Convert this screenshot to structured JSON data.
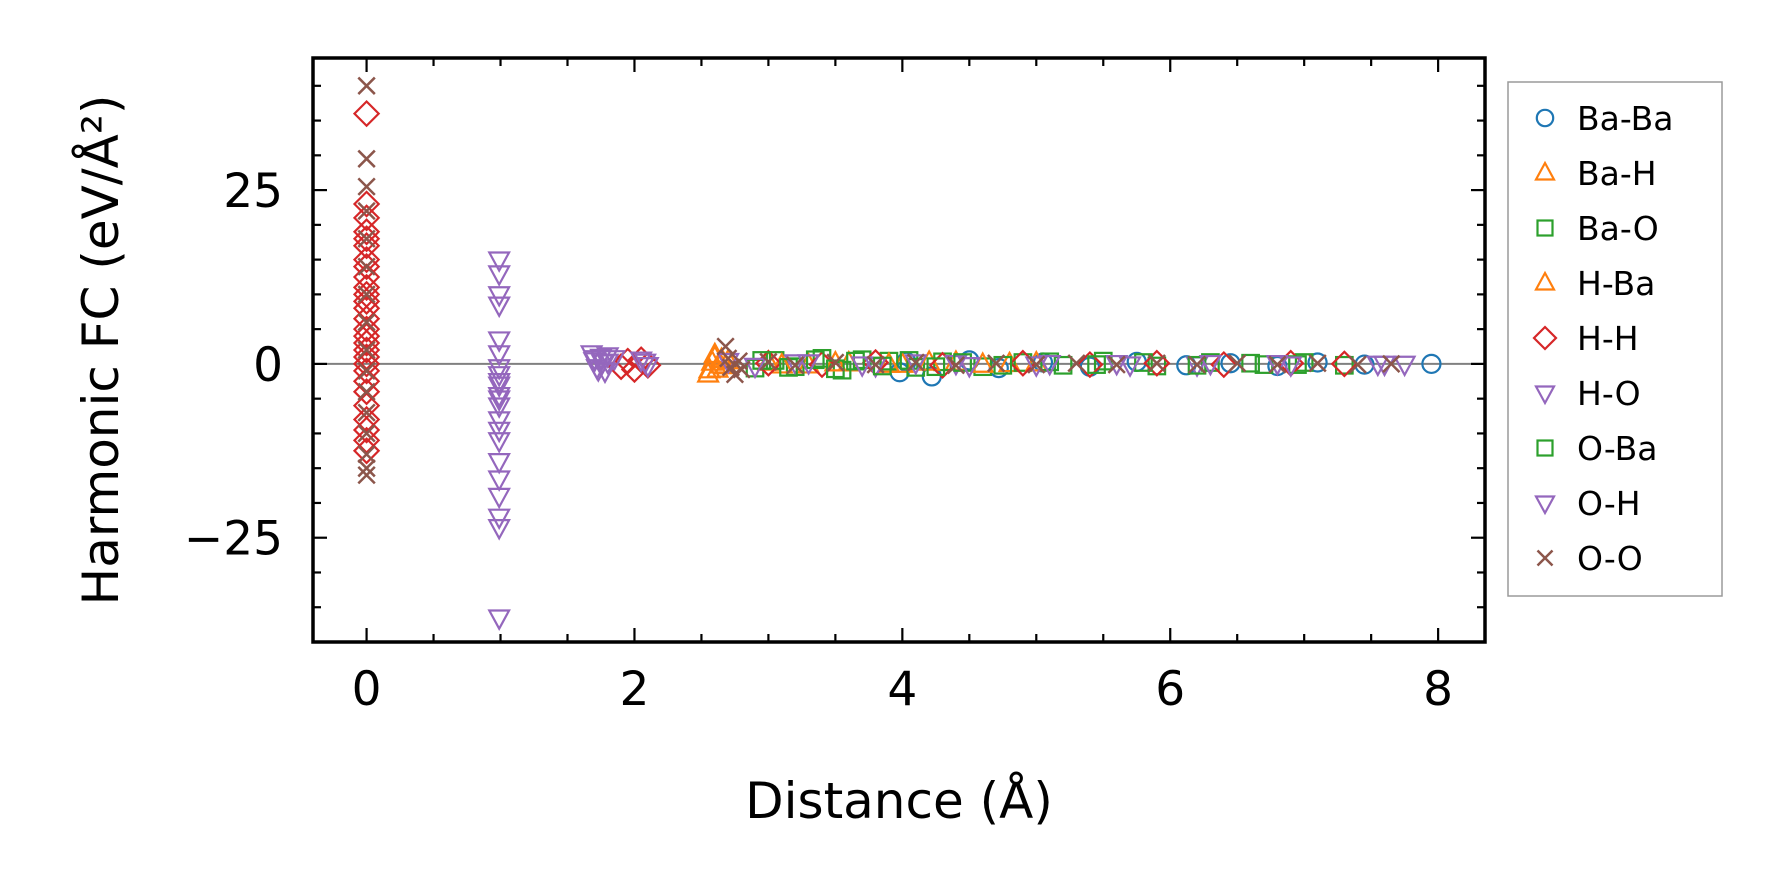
{
  "chart_data": {
    "type": "scatter",
    "xlabel": "Distance (Å)",
    "ylabel": "Harmonic FC (eV/Å²)",
    "xlim": [
      -0.4,
      8.35
    ],
    "ylim": [
      -40,
      44
    ],
    "x_ticks": [
      0,
      2,
      4,
      6,
      8
    ],
    "x_tick_labels": [
      "0",
      "2",
      "4",
      "6",
      "8"
    ],
    "y_ticks": [
      -25,
      0,
      25
    ],
    "y_tick_labels": [
      "−25",
      "0",
      "25"
    ],
    "grid": false,
    "zero_line": true,
    "legend_position": "outside right",
    "series": [
      {
        "name": "Ba-Ba",
        "marker": "circle",
        "color": "#1f77b4",
        "x": [
          3.98,
          4.03,
          4.22,
          4.5,
          4.72,
          5.05,
          5.4,
          5.75,
          6.12,
          6.45,
          6.8,
          7.1,
          7.45,
          7.95
        ],
        "y": [
          -1.2,
          0.3,
          -1.8,
          0.5,
          -0.6,
          0.2,
          -0.4,
          0.3,
          -0.2,
          0.1,
          -0.3,
          0.2,
          -0.1,
          0.0
        ]
      },
      {
        "name": "Ba-H",
        "marker": "triangle-up",
        "color": "#ff7f0e",
        "x": [
          2.55,
          2.58,
          2.6,
          2.62,
          2.65,
          2.68,
          3.0,
          3.3,
          3.6,
          4.0,
          4.4,
          4.8
        ],
        "y": [
          -1.5,
          0.2,
          1.3,
          -0.8,
          0.6,
          -0.3,
          0.2,
          -0.2,
          0.1,
          -0.1,
          0.2,
          0.0
        ]
      },
      {
        "name": "Ba-O",
        "marker": "square",
        "color": "#2ca02c",
        "x": [
          2.9,
          3.05,
          3.2,
          3.4,
          3.55,
          3.7,
          3.9,
          4.1,
          4.3,
          4.6,
          4.9,
          5.2,
          5.5,
          5.9,
          6.3,
          6.7,
          7.0,
          7.3
        ],
        "y": [
          -0.6,
          0.5,
          -0.4,
          0.8,
          -0.9,
          0.6,
          0.4,
          -0.5,
          0.3,
          -0.4,
          0.2,
          -0.2,
          0.4,
          -0.3,
          0.2,
          -0.1,
          0.2,
          -0.2
        ]
      },
      {
        "name": "H-Ba",
        "marker": "triangle-up",
        "color": "#ff7f0e",
        "x": [
          2.56,
          2.6,
          2.64,
          2.7,
          3.1,
          3.5,
          3.9,
          4.2,
          4.6,
          5.0
        ],
        "y": [
          -0.9,
          0.9,
          -0.2,
          0.4,
          -0.2,
          0.1,
          -0.1,
          0.2,
          -0.1,
          0.1
        ]
      },
      {
        "name": "H-H",
        "marker": "diamond",
        "color": "#d62728",
        "x": [
          0,
          0,
          0,
          0,
          0,
          0,
          0,
          0,
          0,
          0,
          0,
          0,
          0,
          0,
          0,
          0,
          0,
          0,
          0,
          0,
          0,
          0,
          0,
          0,
          0,
          0,
          0,
          0,
          1.9,
          1.95,
          2.0,
          2.05,
          2.1,
          3.0,
          3.4,
          3.8,
          4.3,
          4.9,
          5.4,
          5.9,
          6.4,
          6.9,
          7.3
        ],
        "y": [
          36,
          23,
          21,
          19,
          18,
          17,
          15,
          14,
          12.5,
          11,
          10,
          9,
          8,
          6.5,
          5,
          4,
          3,
          2,
          1,
          0,
          -1,
          -2.5,
          -4,
          -6,
          -8,
          -9.5,
          -11,
          -12.5,
          -0.4,
          0.4,
          -0.8,
          0.6,
          -0.2,
          0.1,
          -0.1,
          0.2,
          -0.2,
          0.1,
          -0.1,
          0.1,
          -0.1,
          0.1,
          0.0
        ]
      },
      {
        "name": "H-O",
        "marker": "triangle-down",
        "color": "#9467bd",
        "x": [
          0.99,
          0.99,
          0.99,
          0.99,
          0.99,
          0.99,
          0.99,
          0.99,
          0.99,
          0.99,
          0.99,
          0.99,
          0.99,
          0.99,
          0.99,
          0.99,
          0.99,
          0.99,
          0.99,
          0.99,
          0.99,
          0.99,
          1.68,
          1.7,
          1.72,
          1.75,
          1.78,
          1.8,
          1.85,
          2.05,
          2.1,
          3.2,
          3.8,
          4.4,
          5.0,
          5.6,
          6.2,
          6.8,
          7.55,
          7.75
        ],
        "y": [
          15,
          13,
          10,
          8.5,
          3.5,
          1.5,
          -0.5,
          -1.5,
          -3,
          -4.5,
          -6,
          -8,
          -9.5,
          -11,
          -14,
          -16.5,
          -19,
          -22,
          -23.5,
          -36.5,
          -2.5,
          -5,
          1.5,
          0.5,
          -0.5,
          1.0,
          -1.0,
          0.3,
          0.8,
          0.6,
          -0.2,
          0.2,
          -0.2,
          0.1,
          -0.1,
          0.1,
          -0.1,
          0.1,
          0.0,
          0.0
        ]
      },
      {
        "name": "O-Ba",
        "marker": "square",
        "color": "#2ca02c",
        "x": [
          2.95,
          3.15,
          3.35,
          3.5,
          3.65,
          3.85,
          4.05,
          4.25,
          4.45,
          4.75,
          5.1,
          5.45,
          5.8,
          6.2,
          6.6,
          6.95
        ],
        "y": [
          0.5,
          -0.5,
          0.6,
          -0.7,
          0.4,
          -0.3,
          0.5,
          -0.4,
          0.2,
          -0.2,
          0.3,
          -0.1,
          0.2,
          -0.2,
          0.1,
          -0.1
        ]
      },
      {
        "name": "O-H",
        "marker": "triangle-down",
        "color": "#9467bd",
        "x": [
          1.7,
          1.73,
          1.76,
          1.8,
          2.08,
          2.7,
          2.9,
          3.3,
          3.7,
          4.1,
          4.5,
          5.1,
          5.7,
          6.3,
          6.9,
          7.6
        ],
        "y": [
          0.8,
          -0.8,
          0.2,
          1.2,
          0.3,
          0.4,
          -0.3,
          0.2,
          -0.1,
          0.2,
          -0.2,
          0.1,
          -0.1,
          0.1,
          -0.1,
          0.0
        ]
      },
      {
        "name": "O-O",
        "marker": "x",
        "color": "#8c564b",
        "x": [
          0,
          0,
          0,
          0,
          0,
          0,
          0,
          0,
          0,
          0,
          0,
          0,
          0,
          0,
          0,
          0,
          2.68,
          2.7,
          2.72,
          2.75,
          2.78,
          2.8,
          3.0,
          3.2,
          3.5,
          3.8,
          4.1,
          4.4,
          4.7,
          5.0,
          5.3,
          5.6,
          5.9,
          6.2,
          6.5,
          6.8,
          7.1,
          7.4,
          7.65
        ],
        "y": [
          40,
          29.5,
          25.5,
          22,
          18,
          14,
          10,
          6,
          2,
          -1,
          -4,
          -7,
          -10,
          -13,
          -15,
          -16,
          2.5,
          0.8,
          -0.5,
          -1.5,
          0.4,
          -0.8,
          0.3,
          -0.2,
          0.2,
          -0.1,
          0.2,
          -0.2,
          0.1,
          -0.1,
          0.1,
          -0.1,
          0.1,
          -0.1,
          0.1,
          -0.1,
          0.1,
          -0.1,
          0.0
        ]
      }
    ]
  }
}
